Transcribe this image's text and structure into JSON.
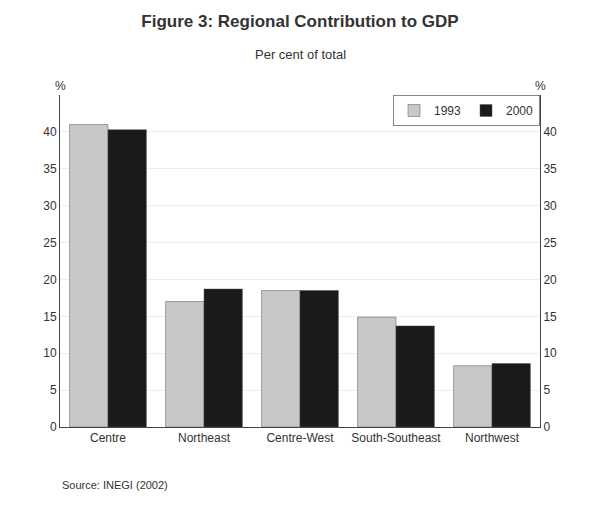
{
  "chart_data": {
    "type": "bar",
    "title": "Figure 3: Regional Contribution to GDP",
    "subtitle": "Per cent of total",
    "source": "Source: INEGI (2002)",
    "categories": [
      "Centre",
      "Northeast",
      "Centre-West",
      "South-Southeast",
      "Northwest"
    ],
    "series": [
      {
        "name": "1993",
        "color": "#c8c8c8",
        "values": [
          41.0,
          17.0,
          18.5,
          14.9,
          8.3
        ]
      },
      {
        "name": "2000",
        "color": "#1a1a1a",
        "values": [
          40.3,
          18.7,
          18.5,
          13.7,
          8.6
        ]
      }
    ],
    "ylabel": "%",
    "y2label": "%",
    "ylim": [
      0,
      45
    ],
    "yticks": [
      0,
      5,
      10,
      15,
      20,
      25,
      30,
      35,
      40
    ],
    "y2lim": [
      0,
      45
    ],
    "y2ticks": [
      0,
      5,
      10,
      15,
      20,
      25,
      30,
      35,
      40
    ],
    "grid": true,
    "legend": "upper right"
  }
}
